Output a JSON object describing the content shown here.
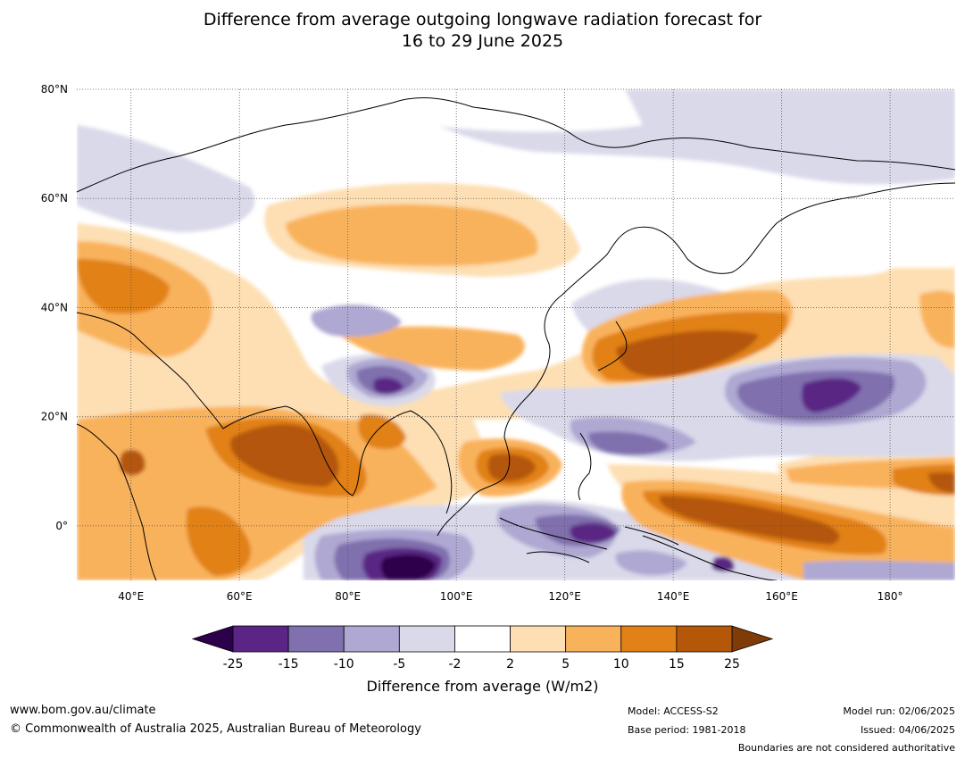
{
  "title_line1": "Difference from average outgoing longwave radiation forecast for",
  "title_line2": "16 to 29 June 2025",
  "map": {
    "lon_range": [
      30,
      192
    ],
    "lat_range": [
      -10,
      80
    ],
    "lon_ticks": [
      {
        "value": 40,
        "label": "40°E"
      },
      {
        "value": 60,
        "label": "60°E"
      },
      {
        "value": 80,
        "label": "80°E"
      },
      {
        "value": 100,
        "label": "100°E"
      },
      {
        "value": 120,
        "label": "120°E"
      },
      {
        "value": 140,
        "label": "140°E"
      },
      {
        "value": 160,
        "label": "160°E"
      },
      {
        "value": 180,
        "label": "180°"
      }
    ],
    "lat_ticks": [
      {
        "value": 80,
        "label": "80°N"
      },
      {
        "value": 60,
        "label": "60°N"
      },
      {
        "value": 40,
        "label": "40°N"
      },
      {
        "value": 20,
        "label": "20°N"
      },
      {
        "value": 0,
        "label": "0°"
      }
    ]
  },
  "colorbar": {
    "label": "Difference from average (W/m2)",
    "ticks": [
      "-25",
      "-15",
      "-10",
      "-5",
      "-2",
      "2",
      "5",
      "10",
      "15",
      "25"
    ],
    "colors": [
      "#5a2584",
      "#8070ae",
      "#aea8d2",
      "#d9d9ea",
      "#ffffff",
      "#fddfb3",
      "#f9b25c",
      "#e18118",
      "#b45709"
    ],
    "under_color": "#2d004b",
    "over_color": "#7f3b08"
  },
  "footer": {
    "website": "www.bom.gov.au/climate",
    "copyright": "© Commonwealth of Australia 2025, Australian Bureau of Meteorology",
    "model": "Model: ACCESS-S2",
    "base_period": "Base period: 1981-2018",
    "model_run": "Model run: 02/06/2025",
    "issued": "Issued: 04/06/2025",
    "disclaimer": "Boundaries are not considered authoritative"
  }
}
